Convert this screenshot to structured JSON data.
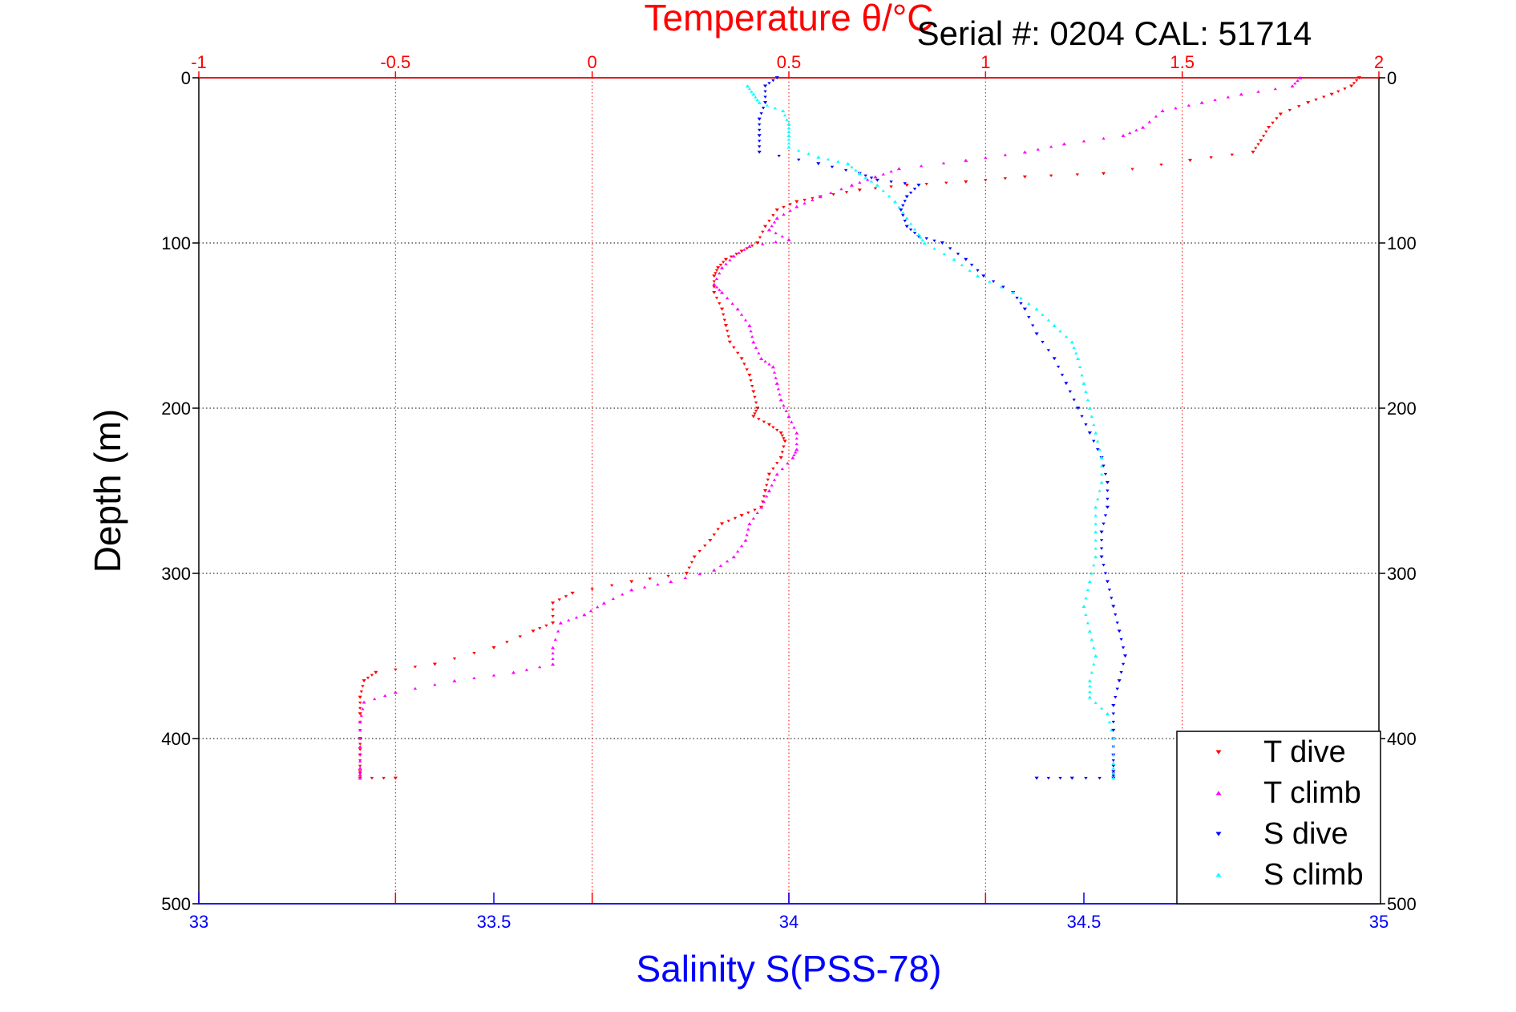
{
  "chart_data": {
    "type": "scatter",
    "title": "Temperature θ/°C",
    "subtitle": "Serial #: 0204  CAL: 51714",
    "ylabel": "Depth (m)",
    "xlabel": "Salinity S(PSS-78)",
    "ylim": [
      0,
      500
    ],
    "y_reversed": true,
    "y_ticks": [
      0,
      100,
      200,
      300,
      400,
      500
    ],
    "x_top": {
      "label": "Temperature θ/°C",
      "lim": [
        -1,
        2
      ],
      "ticks": [
        -1,
        -0.5,
        0,
        0.5,
        1,
        1.5,
        2
      ],
      "tick_labels": [
        "-1",
        "-0.5",
        "0",
        "0.5",
        "1",
        "1.5",
        "2"
      ],
      "grid": true,
      "color": "#ff0000"
    },
    "x_bottom": {
      "label": "Salinity S(PSS-78)",
      "lim": [
        33,
        35
      ],
      "ticks": [
        33,
        33.5,
        34,
        34.5,
        35
      ],
      "tick_labels": [
        "33",
        "33.5",
        "34",
        "34.5",
        "35"
      ],
      "color": "#0000ff"
    },
    "y_grid": true,
    "legend_position": "bottom-right",
    "series": [
      {
        "name": "T dive",
        "axis": "top",
        "color": "#ff0000",
        "marker": "triangle-down",
        "points": [
          [
            1.95,
            0
          ],
          [
            1.93,
            5
          ],
          [
            1.88,
            10
          ],
          [
            1.82,
            15
          ],
          [
            1.75,
            22
          ],
          [
            1.72,
            30
          ],
          [
            1.7,
            38
          ],
          [
            1.68,
            45
          ],
          [
            1.52,
            50
          ],
          [
            1.3,
            58
          ],
          [
            1.1,
            60
          ],
          [
            0.95,
            63
          ],
          [
            0.8,
            65
          ],
          [
            0.68,
            68
          ],
          [
            0.58,
            72
          ],
          [
            0.52,
            75
          ],
          [
            0.47,
            80
          ],
          [
            0.44,
            90
          ],
          [
            0.42,
            100
          ],
          [
            0.38,
            105
          ],
          [
            0.34,
            110
          ],
          [
            0.32,
            115
          ],
          [
            0.31,
            120
          ],
          [
            0.31,
            130
          ],
          [
            0.33,
            140
          ],
          [
            0.34,
            150
          ],
          [
            0.35,
            160
          ],
          [
            0.38,
            170
          ],
          [
            0.4,
            180
          ],
          [
            0.41,
            190
          ],
          [
            0.42,
            200
          ],
          [
            0.41,
            205
          ],
          [
            0.45,
            210
          ],
          [
            0.48,
            215
          ],
          [
            0.49,
            220
          ],
          [
            0.48,
            230
          ],
          [
            0.45,
            240
          ],
          [
            0.44,
            250
          ],
          [
            0.43,
            260
          ],
          [
            0.38,
            265
          ],
          [
            0.33,
            270
          ],
          [
            0.3,
            280
          ],
          [
            0.26,
            290
          ],
          [
            0.24,
            300
          ],
          [
            0.1,
            305
          ],
          [
            -0.05,
            312
          ],
          [
            -0.1,
            318
          ],
          [
            -0.1,
            330
          ],
          [
            -0.15,
            335
          ],
          [
            -0.25,
            345
          ],
          [
            -0.4,
            355
          ],
          [
            -0.55,
            360
          ],
          [
            -0.58,
            365
          ],
          [
            -0.59,
            375
          ],
          [
            -0.59,
            385
          ],
          [
            -0.59,
            400
          ],
          [
            -0.59,
            410
          ],
          [
            -0.59,
            420
          ],
          [
            -0.59,
            424
          ],
          [
            -0.5,
            424
          ]
        ]
      },
      {
        "name": "T climb",
        "axis": "top",
        "color": "#ff00ff",
        "marker": "triangle-up",
        "points": [
          [
            1.8,
            0
          ],
          [
            1.78,
            5
          ],
          [
            1.65,
            10
          ],
          [
            1.55,
            15
          ],
          [
            1.45,
            20
          ],
          [
            1.4,
            30
          ],
          [
            1.35,
            35
          ],
          [
            1.2,
            40
          ],
          [
            1.1,
            45
          ],
          [
            0.95,
            50
          ],
          [
            0.78,
            55
          ],
          [
            0.72,
            60
          ],
          [
            0.66,
            65
          ],
          [
            0.58,
            72
          ],
          [
            0.52,
            78
          ],
          [
            0.47,
            85
          ],
          [
            0.45,
            92
          ],
          [
            0.5,
            98
          ],
          [
            0.4,
            102
          ],
          [
            0.36,
            108
          ],
          [
            0.33,
            115
          ],
          [
            0.31,
            125
          ],
          [
            0.33,
            130
          ],
          [
            0.37,
            140
          ],
          [
            0.4,
            150
          ],
          [
            0.41,
            160
          ],
          [
            0.43,
            170
          ],
          [
            0.46,
            175
          ],
          [
            0.47,
            185
          ],
          [
            0.48,
            195
          ],
          [
            0.5,
            205
          ],
          [
            0.52,
            215
          ],
          [
            0.52,
            225
          ],
          [
            0.51,
            230
          ],
          [
            0.47,
            240
          ],
          [
            0.45,
            250
          ],
          [
            0.43,
            260
          ],
          [
            0.4,
            270
          ],
          [
            0.39,
            280
          ],
          [
            0.36,
            290
          ],
          [
            0.31,
            298
          ],
          [
            0.2,
            305
          ],
          [
            0.1,
            310
          ],
          [
            0.03,
            318
          ],
          [
            -0.02,
            325
          ],
          [
            -0.08,
            330
          ],
          [
            -0.1,
            345
          ],
          [
            -0.1,
            355
          ],
          [
            -0.2,
            360
          ],
          [
            -0.35,
            365
          ],
          [
            -0.5,
            372
          ],
          [
            -0.58,
            378
          ],
          [
            -0.59,
            390
          ],
          [
            -0.59,
            405
          ],
          [
            -0.59,
            418
          ],
          [
            -0.59,
            424
          ]
        ]
      },
      {
        "name": "S dive",
        "axis": "bottom",
        "color": "#0000ff",
        "marker": "triangle-down",
        "points": [
          [
            33.98,
            0
          ],
          [
            33.96,
            5
          ],
          [
            33.96,
            15
          ],
          [
            33.95,
            25
          ],
          [
            33.95,
            35
          ],
          [
            33.95,
            45
          ],
          [
            34.05,
            52
          ],
          [
            34.12,
            58
          ],
          [
            34.15,
            62
          ],
          [
            34.22,
            65
          ],
          [
            34.2,
            72
          ],
          [
            34.19,
            80
          ],
          [
            34.2,
            90
          ],
          [
            34.22,
            96
          ],
          [
            34.26,
            100
          ],
          [
            34.3,
            110
          ],
          [
            34.33,
            120
          ],
          [
            34.38,
            130
          ],
          [
            34.4,
            140
          ],
          [
            34.42,
            155
          ],
          [
            34.45,
            170
          ],
          [
            34.47,
            185
          ],
          [
            34.49,
            200
          ],
          [
            34.51,
            215
          ],
          [
            34.53,
            230
          ],
          [
            34.54,
            245
          ],
          [
            34.54,
            260
          ],
          [
            34.53,
            275
          ],
          [
            34.53,
            290
          ],
          [
            34.54,
            305
          ],
          [
            34.55,
            320
          ],
          [
            34.56,
            335
          ],
          [
            34.57,
            350
          ],
          [
            34.56,
            365
          ],
          [
            34.55,
            380
          ],
          [
            34.55,
            395
          ],
          [
            34.55,
            410
          ],
          [
            34.55,
            420
          ],
          [
            34.55,
            424
          ],
          [
            34.48,
            424
          ],
          [
            34.42,
            424
          ]
        ]
      },
      {
        "name": "S climb",
        "axis": "bottom",
        "color": "#00ffff",
        "marker": "triangle-up",
        "points": [
          [
            33.93,
            5
          ],
          [
            33.94,
            10
          ],
          [
            33.95,
            15
          ],
          [
            33.99,
            20
          ],
          [
            34.0,
            28
          ],
          [
            34.0,
            35
          ],
          [
            34.0,
            42
          ],
          [
            34.05,
            48
          ],
          [
            34.1,
            52
          ],
          [
            34.12,
            58
          ],
          [
            34.15,
            65
          ],
          [
            34.18,
            75
          ],
          [
            34.2,
            85
          ],
          [
            34.22,
            95
          ],
          [
            34.23,
            100
          ],
          [
            34.28,
            110
          ],
          [
            34.32,
            120
          ],
          [
            34.38,
            130
          ],
          [
            34.42,
            140
          ],
          [
            34.45,
            150
          ],
          [
            34.48,
            160
          ],
          [
            34.49,
            170
          ],
          [
            34.5,
            185
          ],
          [
            34.51,
            200
          ],
          [
            34.52,
            215
          ],
          [
            34.53,
            230
          ],
          [
            34.53,
            245
          ],
          [
            34.52,
            260
          ],
          [
            34.52,
            275
          ],
          [
            34.52,
            290
          ],
          [
            34.51,
            305
          ],
          [
            34.5,
            320
          ],
          [
            34.51,
            335
          ],
          [
            34.52,
            350
          ],
          [
            34.51,
            365
          ],
          [
            34.51,
            375
          ],
          [
            34.54,
            385
          ],
          [
            34.55,
            400
          ],
          [
            34.55,
            415
          ],
          [
            34.55,
            424
          ]
        ]
      }
    ]
  }
}
